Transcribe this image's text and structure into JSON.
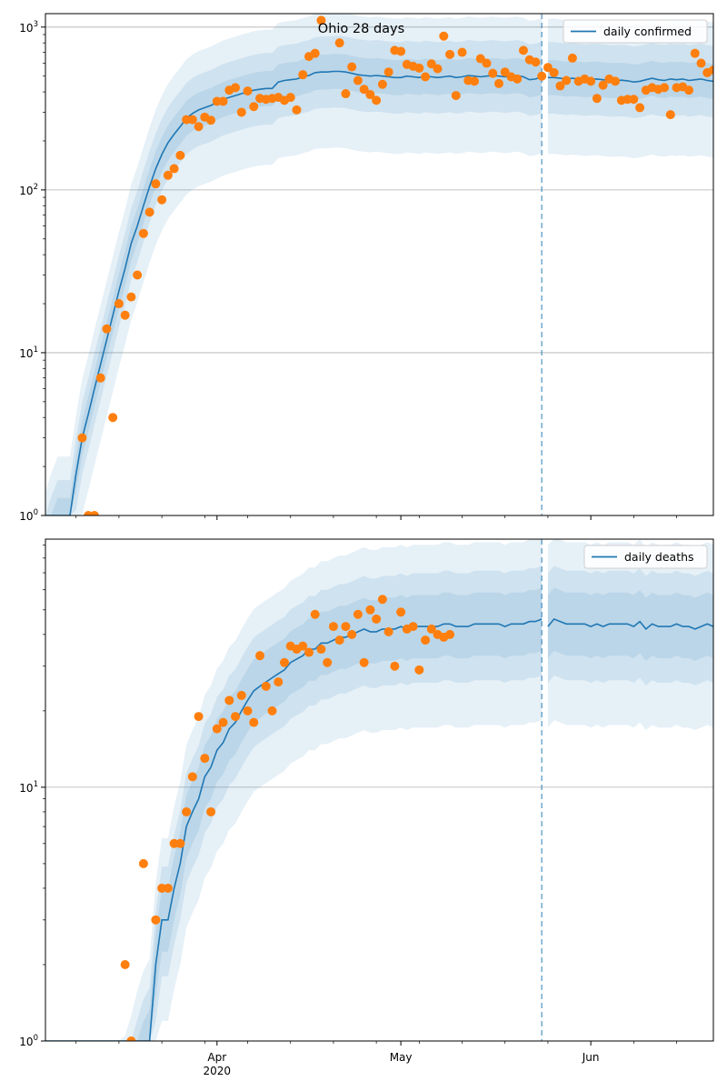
{
  "chart_data": [
    {
      "type": "line",
      "scale": "log",
      "title": "Ohio 28 days",
      "legend": {
        "label": "daily confirmed",
        "placement": "top-right"
      },
      "ylim": [
        1,
        1210
      ],
      "xlim": [
        "2020-03-04",
        "2020-06-21"
      ],
      "y_ticks": [
        {
          "value": 1,
          "base": "10",
          "exp": "0"
        },
        {
          "value": 10,
          "base": "10",
          "exp": "1"
        },
        {
          "value": 100,
          "base": "10",
          "exp": "2"
        },
        {
          "value": 1000,
          "base": "10",
          "exp": "3"
        }
      ],
      "grid": true,
      "vline_date": "2020-05-24",
      "forecast_start": "2020-05-25",
      "model": {
        "start": "2020-03-04",
        "values": [
          0.6,
          0.8,
          1,
          1,
          1,
          1.8,
          3,
          4.2,
          6,
          8.5,
          12,
          17,
          24,
          33,
          47,
          60,
          80,
          105,
          135,
          165,
          195,
          220,
          245,
          275,
          295,
          310,
          320,
          330,
          345,
          360,
          370,
          380,
          390,
          400,
          410,
          415,
          420,
          420,
          460,
          470,
          475,
          480,
          495,
          505,
          525,
          530,
          530,
          535,
          535,
          530,
          520,
          510,
          505,
          500,
          505,
          500,
          495,
          490,
          490,
          500,
          495,
          490,
          500,
          495,
          490,
          495,
          500,
          490,
          495,
          505,
          500,
          495,
          500,
          505,
          500,
          495,
          500,
          505,
          495,
          475,
          480,
          495,
          490,
          490,
          485,
          480,
          485,
          480,
          475,
          478,
          480,
          475,
          470,
          470,
          472,
          468,
          460,
          465,
          475,
          485,
          475,
          470,
          480,
          475,
          480,
          470,
          475,
          480,
          470,
          465
        ],
        "interval_multipliers": [
          {
            "lo": 0.78,
            "hi": 1.28
          },
          {
            "lo": 0.6,
            "hi": 1.65
          },
          {
            "lo": 0.34,
            "hi": 2.3
          }
        ]
      },
      "observed": {
        "start": "2020-03-10",
        "values": [
          3,
          1,
          1,
          7,
          14,
          4,
          20,
          17,
          22,
          30,
          54,
          73,
          109,
          87,
          123,
          135,
          163,
          270,
          270,
          245,
          280,
          268,
          350,
          350,
          410,
          425,
          300,
          405,
          325,
          365,
          360,
          365,
          370,
          355,
          370,
          310,
          510,
          660,
          690,
          1100,
          null,
          null,
          800,
          390,
          570,
          470,
          415,
          385,
          355,
          445,
          530,
          720,
          710,
          590,
          575,
          560,
          495,
          595,
          555,
          880,
          680,
          380,
          700,
          470,
          465,
          640,
          600,
          520,
          450,
          530,
          495,
          480,
          720,
          630,
          610,
          500,
          565,
          525,
          435,
          470,
          645,
          465,
          480,
          465,
          365,
          440,
          480,
          465,
          355,
          360,
          360,
          320,
          410,
          425,
          415,
          425,
          290,
          425,
          430,
          410,
          690,
          600,
          525,
          545
        ]
      }
    },
    {
      "type": "line",
      "scale": "log",
      "legend": {
        "label": "daily deaths",
        "placement": "top-right"
      },
      "ylim": [
        1,
        95
      ],
      "xlim": [
        "2020-03-04",
        "2020-06-21"
      ],
      "y_ticks": [
        {
          "value": 1,
          "base": "10",
          "exp": "0"
        },
        {
          "value": 10,
          "base": "10",
          "exp": "1"
        }
      ],
      "grid": true,
      "vline_date": "2020-05-24",
      "forecast_start": "2020-05-25",
      "x_ticks": [
        {
          "date": "2020-04-01",
          "label": "Apr",
          "sublabel": "2020"
        },
        {
          "date": "2020-05-01",
          "label": "May",
          "sublabel": ""
        },
        {
          "date": "2020-06-01",
          "label": "Jun",
          "sublabel": ""
        }
      ],
      "model": {
        "start": "2020-03-04",
        "values": [
          0.08,
          0.09,
          0.1,
          0.11,
          0.12,
          0.14,
          0.16,
          0.18,
          0.2,
          0.23,
          0.26,
          0.3,
          0.4,
          0.5,
          0.6,
          0.75,
          0.9,
          1,
          2,
          3,
          3,
          4,
          5,
          7,
          8,
          9,
          11,
          12,
          14,
          15,
          17,
          18,
          20,
          22,
          24,
          25,
          26,
          27,
          28,
          29,
          31,
          32,
          33,
          35,
          35,
          37,
          37,
          38,
          39,
          39,
          40,
          41,
          42,
          41,
          41,
          42,
          42,
          42,
          43,
          42,
          43,
          43,
          43,
          43,
          43,
          44,
          44,
          43,
          43,
          43,
          44,
          44,
          44,
          44,
          44,
          43,
          44,
          44,
          44,
          45,
          45,
          46,
          43,
          46,
          45,
          44,
          44,
          44,
          44,
          43,
          44,
          43,
          44,
          44,
          44,
          44,
          43,
          45,
          42,
          44,
          43,
          43,
          43,
          44,
          43,
          43,
          42,
          43,
          44,
          43
        ],
        "interval_multipliers": [
          {
            "lo": 0.75,
            "hi": 1.33
          },
          {
            "lo": 0.6,
            "hi": 1.62
          },
          {
            "lo": 0.4,
            "hi": 2.1
          }
        ]
      },
      "observed": {
        "start": "2020-03-17",
        "values": [
          2,
          1,
          null,
          5,
          null,
          3,
          4,
          4,
          6,
          6,
          8,
          11,
          19,
          13,
          8,
          17,
          18,
          22,
          19,
          23,
          20,
          18,
          33,
          25,
          20,
          26,
          31,
          36,
          35,
          36,
          34,
          48,
          35,
          31,
          43,
          38,
          43,
          40,
          48,
          31,
          50,
          46,
          55,
          41,
          30,
          49,
          42,
          43,
          29,
          38,
          42,
          40,
          39,
          40
        ]
      }
    }
  ]
}
